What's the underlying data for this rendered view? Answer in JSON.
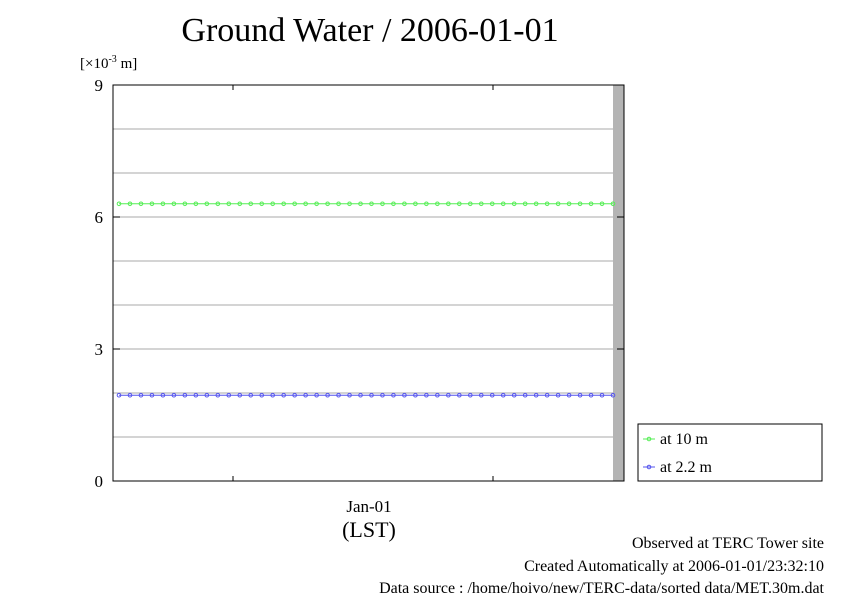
{
  "chart_data": {
    "type": "line",
    "title": "Ground Water / 2006-01-01",
    "ylabel_prefix": "[×10",
    "ylabel_exp": "-3",
    "ylabel_suffix": " m]",
    "xlabel": "(LST)",
    "x_tick_label": "Jan-01",
    "ylim": [
      0,
      9
    ],
    "y_ticks": [
      "0",
      "3",
      "6",
      "9"
    ],
    "grid": true,
    "legend_position": "bottom-right",
    "n_points": 46,
    "series": [
      {
        "name": "at 10 m",
        "color": "#55ee55",
        "value": 6.3
      },
      {
        "name": "at 2.2 m",
        "color": "#5555ee",
        "value": 1.95
      }
    ]
  },
  "footer": {
    "line1": "Observed at TERC Tower site",
    "line2": "Created Automatically at 2006-01-01/23:32:10",
    "line3": "Data source : /home/hoivo/new/TERC-data/sorted  data/MET.30m.dat"
  }
}
